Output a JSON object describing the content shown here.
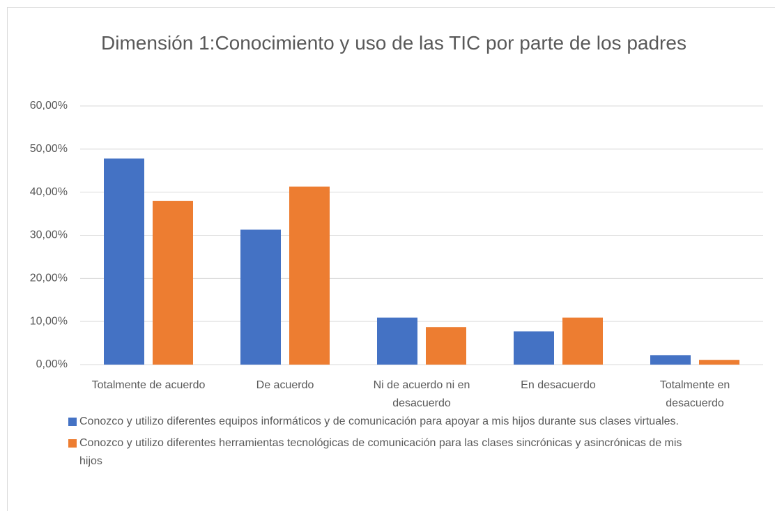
{
  "chart_data": {
    "type": "bar",
    "title": "Dimensión 1:Conocimiento y uso de las TIC por parte de los padres",
    "categories": [
      "Totalmente de acuerdo",
      "De acuerdo",
      "Ni de acuerdo ni en desacuerdo",
      "En desacuerdo",
      "Totalmente en desacuerdo"
    ],
    "series": [
      {
        "name": "Conozco y utilizo diferentes equipos informáticos y de comunicación para apoyar a mis hijos durante sus clases virtuales.",
        "color": "#4472c4",
        "values": [
          47.8,
          31.3,
          10.9,
          7.7,
          2.2
        ]
      },
      {
        "name": "Conozco y utilizo diferentes herramientas tecnológicas de comunicación para las clases sincrónicas y asincrónicas de mis hijos",
        "color": "#ed7d31",
        "values": [
          38.0,
          41.3,
          8.7,
          10.9,
          1.1
        ]
      }
    ],
    "ylim": [
      0,
      60
    ],
    "yticks": [
      {
        "value": 0,
        "label": "0,00%"
      },
      {
        "value": 10,
        "label": "10,00%"
      },
      {
        "value": 20,
        "label": "20,00%"
      },
      {
        "value": 30,
        "label": "30,00%"
      },
      {
        "value": 40,
        "label": "40,00%"
      },
      {
        "value": 50,
        "label": "50,00%"
      },
      {
        "value": 60,
        "label": "60,00%"
      }
    ],
    "grid": true,
    "legend": "bottom"
  }
}
